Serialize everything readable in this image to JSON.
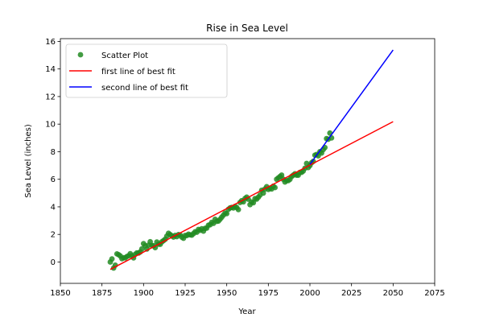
{
  "chart_data": {
    "type": "scatter",
    "title": "Rise in Sea Level",
    "xlabel": "Year",
    "ylabel": "Sea Level (inches)",
    "xlim": [
      1850,
      2075
    ],
    "ylim": [
      -1.55,
      16.2
    ],
    "xticks": [
      1850,
      1875,
      1900,
      1925,
      1950,
      1975,
      2000,
      2025,
      2050,
      2075
    ],
    "yticks": [
      0,
      2,
      4,
      6,
      8,
      10,
      12,
      14,
      16
    ],
    "grid": false,
    "legend_position": "top-left",
    "colors": {
      "scatter": "#228b22",
      "fit1": "#ff0000",
      "fit2": "#0000ff"
    },
    "series": [
      {
        "name": "Scatter Plot",
        "kind": "scatter",
        "points": [
          [
            1880,
            0.0
          ],
          [
            1881,
            0.22
          ],
          [
            1882,
            -0.44
          ],
          [
            1883,
            -0.23
          ],
          [
            1884,
            0.59
          ],
          [
            1885,
            0.53
          ],
          [
            1886,
            0.44
          ],
          [
            1887,
            0.24
          ],
          [
            1888,
            0.31
          ],
          [
            1889,
            0.3
          ],
          [
            1890,
            0.4
          ],
          [
            1891,
            0.45
          ],
          [
            1892,
            0.6
          ],
          [
            1893,
            0.45
          ],
          [
            1894,
            0.3
          ],
          [
            1895,
            0.56
          ],
          [
            1896,
            0.66
          ],
          [
            1897,
            0.65
          ],
          [
            1898,
            0.73
          ],
          [
            1899,
            0.95
          ],
          [
            1900,
            1.33
          ],
          [
            1901,
            1.18
          ],
          [
            1902,
            0.94
          ],
          [
            1903,
            1.22
          ],
          [
            1904,
            1.47
          ],
          [
            1905,
            1.2
          ],
          [
            1906,
            1.18
          ],
          [
            1907,
            1.04
          ],
          [
            1908,
            1.45
          ],
          [
            1909,
            1.29
          ],
          [
            1910,
            1.28
          ],
          [
            1911,
            1.46
          ],
          [
            1912,
            1.55
          ],
          [
            1913,
            1.65
          ],
          [
            1914,
            1.88
          ],
          [
            1915,
            2.08
          ],
          [
            1916,
            1.99
          ],
          [
            1917,
            1.9
          ],
          [
            1918,
            1.81
          ],
          [
            1919,
            1.93
          ],
          [
            1920,
            1.84
          ],
          [
            1921,
            1.99
          ],
          [
            1922,
            1.96
          ],
          [
            1923,
            1.8
          ],
          [
            1924,
            1.72
          ],
          [
            1925,
            1.92
          ],
          [
            1926,
            1.92
          ],
          [
            1927,
            2.02
          ],
          [
            1928,
            1.97
          ],
          [
            1929,
            1.95
          ],
          [
            1930,
            2.06
          ],
          [
            1931,
            2.19
          ],
          [
            1932,
            2.16
          ],
          [
            1933,
            2.36
          ],
          [
            1934,
            2.3
          ],
          [
            1935,
            2.41
          ],
          [
            1936,
            2.24
          ],
          [
            1937,
            2.44
          ],
          [
            1938,
            2.46
          ],
          [
            1939,
            2.67
          ],
          [
            1940,
            2.7
          ],
          [
            1941,
            2.88
          ],
          [
            1942,
            2.8
          ],
          [
            1943,
            3.1
          ],
          [
            1944,
            2.95
          ],
          [
            1945,
            2.97
          ],
          [
            1946,
            3.1
          ],
          [
            1947,
            3.25
          ],
          [
            1948,
            3.4
          ],
          [
            1949,
            3.55
          ],
          [
            1950,
            3.51
          ],
          [
            1951,
            3.82
          ],
          [
            1952,
            3.92
          ],
          [
            1953,
            3.96
          ],
          [
            1954,
            3.92
          ],
          [
            1955,
            4.03
          ],
          [
            1956,
            3.95
          ],
          [
            1957,
            3.8
          ],
          [
            1958,
            4.32
          ],
          [
            1959,
            4.45
          ],
          [
            1960,
            4.36
          ],
          [
            1961,
            4.61
          ],
          [
            1962,
            4.7
          ],
          [
            1963,
            4.55
          ],
          [
            1964,
            4.16
          ],
          [
            1965,
            4.35
          ],
          [
            1966,
            4.3
          ],
          [
            1967,
            4.6
          ],
          [
            1968,
            4.56
          ],
          [
            1969,
            4.7
          ],
          [
            1970,
            4.85
          ],
          [
            1971,
            5.2
          ],
          [
            1972,
            5.0
          ],
          [
            1973,
            5.3
          ],
          [
            1974,
            5.46
          ],
          [
            1975,
            5.26
          ],
          [
            1976,
            5.35
          ],
          [
            1977,
            5.3
          ],
          [
            1978,
            5.5
          ],
          [
            1979,
            5.4
          ],
          [
            1980,
            6.0
          ],
          [
            1981,
            6.1
          ],
          [
            1982,
            6.2
          ],
          [
            1983,
            6.3
          ],
          [
            1984,
            6.0
          ],
          [
            1985,
            5.8
          ],
          [
            1986,
            5.9
          ],
          [
            1987,
            5.9
          ],
          [
            1988,
            6.0
          ],
          [
            1989,
            6.2
          ],
          [
            1990,
            6.3
          ],
          [
            1991,
            6.4
          ],
          [
            1992,
            6.3
          ],
          [
            1993,
            6.3
          ],
          [
            1994,
            6.5
          ],
          [
            1995,
            6.5
          ],
          [
            1996,
            6.6
          ],
          [
            1997,
            6.8
          ],
          [
            1998,
            7.15
          ],
          [
            1999,
            6.85
          ],
          [
            2000,
            7.0
          ],
          [
            2001,
            7.2
          ],
          [
            2002,
            7.3
          ],
          [
            2003,
            7.75
          ],
          [
            2004,
            7.8
          ],
          [
            2005,
            7.7
          ],
          [
            2006,
            8.0
          ],
          [
            2007,
            7.9
          ],
          [
            2008,
            8.15
          ],
          [
            2009,
            8.3
          ],
          [
            2010,
            8.95
          ],
          [
            2011,
            8.9
          ],
          [
            2012,
            9.35
          ],
          [
            2013,
            9.0
          ]
        ]
      },
      {
        "name": "first line of best fit",
        "kind": "line",
        "x": [
          1880,
          2050
        ],
        "y": [
          -0.54,
          10.18
        ]
      },
      {
        "name": "second line of best fit",
        "kind": "line",
        "x": [
          2000,
          2050
        ],
        "y": [
          7.08,
          15.38
        ]
      }
    ]
  }
}
